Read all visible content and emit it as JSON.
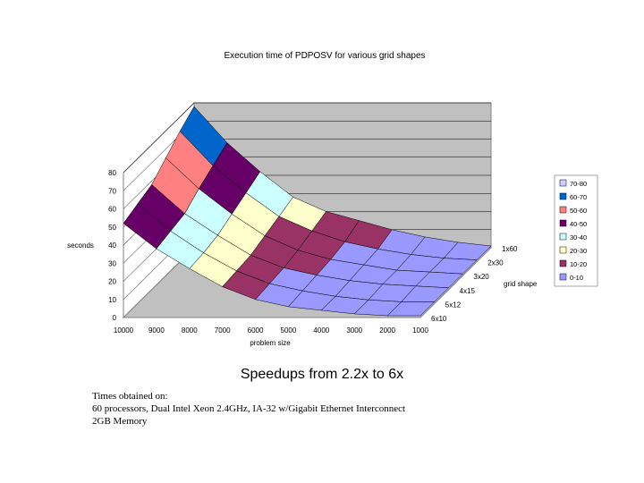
{
  "chart_data": {
    "type": "surface",
    "title": "Execution time of PDPOSV for various grid shapes",
    "zlabel": "seconds",
    "xlabel": "problem size",
    "ylabel": "grid shape",
    "zlim": [
      0,
      80
    ],
    "z_ticks": [
      "0",
      "10",
      "20",
      "30",
      "40",
      "50",
      "60",
      "70",
      "80"
    ],
    "x_categories": [
      "10000",
      "9000",
      "8000",
      "7000",
      "6000",
      "5000",
      "4000",
      "3000",
      "2000",
      "1000"
    ],
    "y_categories": [
      "1x60",
      "2x30",
      "3x20",
      "4x15",
      "5x12",
      "6x10"
    ],
    "values_by_grid": [
      {
        "grid": "1x60",
        "values": [
          78,
          58,
          42,
          28,
          20,
          15,
          10,
          6,
          3,
          1
        ]
      },
      {
        "grid": "2x30",
        "values": [
          72,
          53,
          38,
          25,
          17,
          11,
          7,
          4,
          2,
          1
        ]
      },
      {
        "grid": "3x20",
        "values": [
          65,
          48,
          34,
          22,
          14,
          9,
          6,
          3,
          2,
          1
        ]
      },
      {
        "grid": "4x15",
        "values": [
          58,
          42,
          30,
          19,
          12,
          8,
          5,
          3,
          2,
          1
        ]
      },
      {
        "grid": "5x12",
        "values": [
          55,
          40,
          28,
          18,
          11,
          7,
          4,
          2,
          1,
          1
        ]
      },
      {
        "grid": "6x10",
        "values": [
          52,
          38,
          27,
          17,
          10,
          6,
          4,
          2,
          1,
          1
        ]
      }
    ],
    "legend": [
      {
        "label": "70-80",
        "color": "#ccccff"
      },
      {
        "label": "60-70",
        "color": "#0066cc"
      },
      {
        "label": "50-60",
        "color": "#ff8080"
      },
      {
        "label": "40-50",
        "color": "#660066"
      },
      {
        "label": "30-40",
        "color": "#ccffff"
      },
      {
        "label": "20-30",
        "color": "#ffffcc"
      },
      {
        "label": "10-20",
        "color": "#993366"
      },
      {
        "label": "0-10",
        "color": "#9999ff"
      }
    ],
    "legend_position": "right",
    "wall_color": "#c0c0c0",
    "grid": true
  },
  "caption": "Speedups from 2.2x to 6x",
  "notes": [
    "Times obtained on:",
    "60 processors, Dual Intel Xeon 2.4GHz, IA-32 w/Gigabit Ethernet Interconnect",
    "2GB Memory"
  ]
}
